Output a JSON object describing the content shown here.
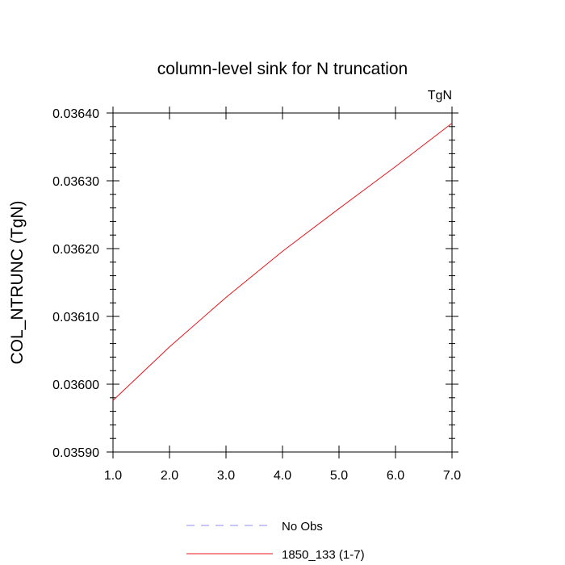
{
  "chart_data": {
    "type": "line",
    "title": "column-level sink for N truncation",
    "units_label": "TgN",
    "ylabel": "COL_NTRUNC  (TgN)",
    "xlabel": "",
    "xlim": [
      1.0,
      7.0
    ],
    "ylim": [
      0.0359,
      0.0364
    ],
    "x_ticks": [
      "1.0",
      "2.0",
      "3.0",
      "4.0",
      "5.0",
      "6.0",
      "7.0"
    ],
    "y_ticks": [
      "0.03590",
      "0.03600",
      "0.03610",
      "0.03620",
      "0.03630",
      "0.03640"
    ],
    "grid": false,
    "series": [
      {
        "name": "1850_133 (1-7)",
        "color": "#e8141c",
        "style": "solid",
        "x": [
          1,
          2,
          3,
          4,
          5,
          6,
          7
        ],
        "y": [
          0.035976,
          0.036055,
          0.036128,
          0.036196,
          0.036259,
          0.036321,
          0.036385
        ]
      }
    ],
    "legend": {
      "placement": "bottom-center",
      "entries": [
        {
          "label": "No Obs",
          "color": "#8c8cf0",
          "style": "dashed"
        },
        {
          "label": "1850_133 (1-7)",
          "color": "#e8141c",
          "style": "solid"
        }
      ]
    }
  }
}
